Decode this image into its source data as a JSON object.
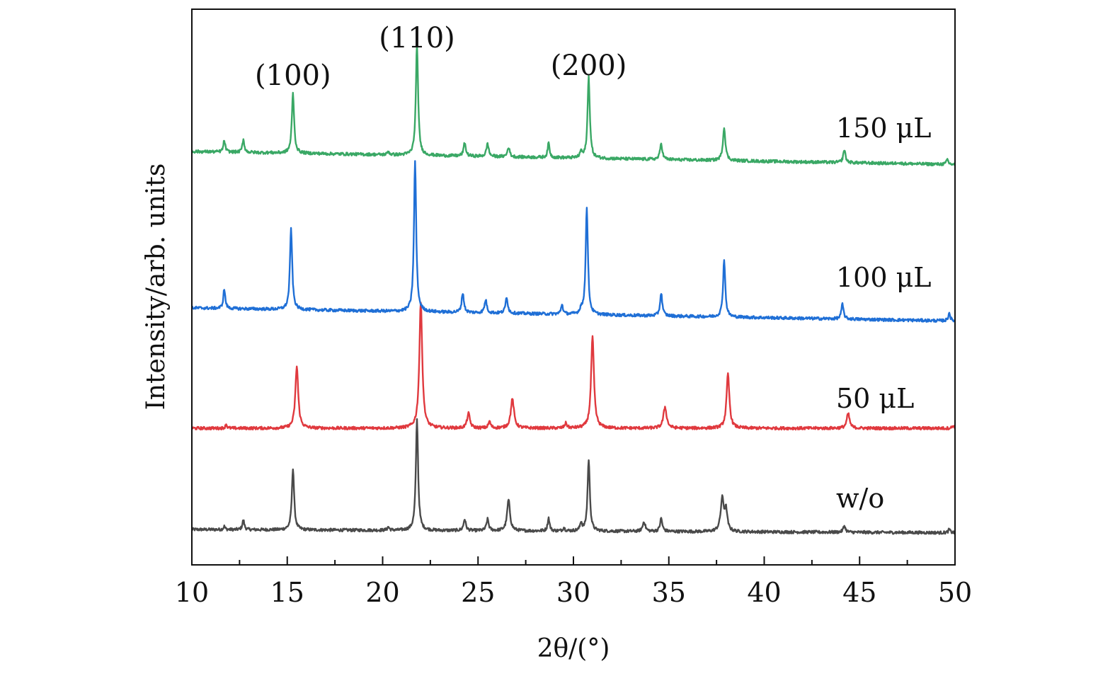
{
  "chart_data": {
    "type": "line",
    "xlabel": "2θ/(°)",
    "ylabel": "Intensity/arb. units",
    "xlim": [
      10,
      50
    ],
    "x_ticks": [
      "10",
      "15",
      "20",
      "25",
      "30",
      "35",
      "40",
      "45",
      "50"
    ],
    "y_ticks_shown": false,
    "grid": false,
    "legend": "none",
    "annotations": [
      {
        "text": "(100)",
        "x": 15.3
      },
      {
        "text": "(110)",
        "x": 21.8
      },
      {
        "text": "(200)",
        "x": 30.8
      }
    ],
    "series": [
      {
        "name": "w/o",
        "color": "#4a4a4a",
        "baseline": 0.0,
        "slope": -0.1,
        "peaks": [
          [
            11.7,
            0.1,
            0.05
          ],
          [
            12.7,
            0.3,
            0.06
          ],
          [
            15.3,
            1.9,
            0.07
          ],
          [
            20.3,
            0.1,
            0.06
          ],
          [
            21.8,
            3.4,
            0.07
          ],
          [
            24.3,
            0.35,
            0.07
          ],
          [
            25.5,
            0.35,
            0.07
          ],
          [
            26.6,
            0.95,
            0.09
          ],
          [
            28.7,
            0.4,
            0.06
          ],
          [
            29.5,
            0.1,
            0.06
          ],
          [
            30.4,
            0.25,
            0.06
          ],
          [
            30.8,
            2.2,
            0.07
          ],
          [
            33.7,
            0.3,
            0.08
          ],
          [
            34.6,
            0.4,
            0.07
          ],
          [
            37.8,
            1.0,
            0.1
          ],
          [
            38.0,
            0.6,
            0.08
          ],
          [
            44.2,
            0.2,
            0.07
          ],
          [
            49.7,
            0.1,
            0.06
          ]
        ]
      },
      {
        "name": "50 μL",
        "color": "#e0393e",
        "baseline": 4.2,
        "slope": 0.0,
        "peaks": [
          [
            11.8,
            0.12,
            0.05
          ],
          [
            15.5,
            1.9,
            0.09
          ],
          [
            22.0,
            3.9,
            0.09
          ],
          [
            24.5,
            0.45,
            0.09
          ],
          [
            25.6,
            0.2,
            0.07
          ],
          [
            26.8,
            0.9,
            0.1
          ],
          [
            29.6,
            0.15,
            0.07
          ],
          [
            31.0,
            2.8,
            0.09
          ],
          [
            34.8,
            0.65,
            0.1
          ],
          [
            38.1,
            1.65,
            0.09
          ],
          [
            44.4,
            0.45,
            0.09
          ],
          [
            49.9,
            0.08,
            0.06
          ]
        ]
      },
      {
        "name": "100 μL",
        "color": "#1f6fd6",
        "baseline": 8.5,
        "slope": -0.4,
        "peaks": [
          [
            11.7,
            0.6,
            0.06
          ],
          [
            15.2,
            2.5,
            0.07
          ],
          [
            21.7,
            4.6,
            0.07
          ],
          [
            24.2,
            0.6,
            0.07
          ],
          [
            25.4,
            0.4,
            0.07
          ],
          [
            26.5,
            0.5,
            0.07
          ],
          [
            29.4,
            0.3,
            0.06
          ],
          [
            30.4,
            0.15,
            0.06
          ],
          [
            30.7,
            3.3,
            0.07
          ],
          [
            34.6,
            0.7,
            0.07
          ],
          [
            37.9,
            1.75,
            0.07
          ],
          [
            44.1,
            0.45,
            0.07
          ],
          [
            49.7,
            0.25,
            0.06
          ]
        ]
      },
      {
        "name": "150 μL",
        "color": "#3aa865",
        "baseline": 14.0,
        "slope": -0.4,
        "peaks": [
          [
            11.7,
            0.35,
            0.06
          ],
          [
            12.7,
            0.4,
            0.06
          ],
          [
            15.3,
            1.85,
            0.07
          ],
          [
            20.3,
            0.1,
            0.06
          ],
          [
            21.8,
            3.4,
            0.07
          ],
          [
            24.3,
            0.4,
            0.07
          ],
          [
            25.5,
            0.4,
            0.07
          ],
          [
            26.6,
            0.3,
            0.07
          ],
          [
            28.7,
            0.45,
            0.06
          ],
          [
            30.4,
            0.2,
            0.06
          ],
          [
            30.8,
            2.5,
            0.07
          ],
          [
            34.6,
            0.5,
            0.07
          ],
          [
            37.9,
            1.0,
            0.08
          ],
          [
            44.2,
            0.4,
            0.07
          ],
          [
            47.0,
            0.05,
            0.06
          ],
          [
            49.6,
            0.15,
            0.06
          ]
        ]
      }
    ]
  }
}
